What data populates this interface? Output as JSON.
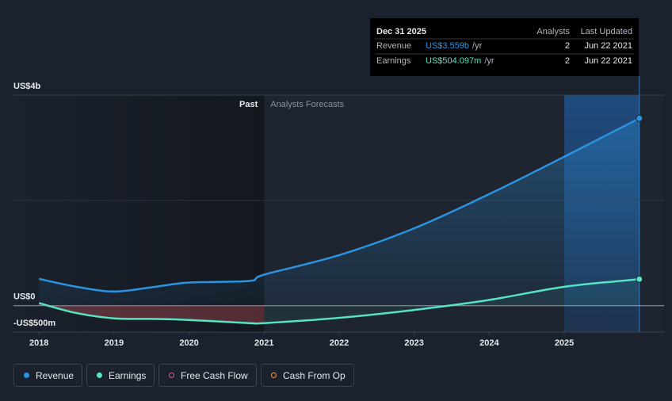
{
  "chart_data": {
    "type": "line",
    "x": [
      2018,
      2018.5,
      2019,
      2019.5,
      2020,
      2020.8,
      2021,
      2022,
      2023,
      2024,
      2025,
      2026
    ],
    "series": [
      {
        "name": "Revenue",
        "color": "#2b93df",
        "values": [
          510,
          360,
          270,
          350,
          440,
          470,
          590,
          960,
          1470,
          2120,
          2830,
          3559
        ]
      },
      {
        "name": "Earnings",
        "color": "#57e2c4",
        "values": [
          50,
          -140,
          -240,
          -250,
          -270,
          -330,
          -330,
          -230,
          -80,
          110,
          360,
          504
        ]
      }
    ],
    "inactive_series": [
      {
        "name": "Free Cash Flow",
        "color": "#d3559a"
      },
      {
        "name": "Cash From Op",
        "color": "#e5a05c"
      }
    ],
    "xlim": [
      2017.66,
      2026.33
    ],
    "xticks": [
      2018,
      2019,
      2020,
      2021,
      2022,
      2023,
      2024,
      2025
    ],
    "ylim": [
      -500,
      4000
    ],
    "yticks": [
      {
        "value": 4000,
        "label": "US$4b"
      },
      {
        "value": 0,
        "label": "US$0"
      },
      {
        "value": -500,
        "label": "-US$500m"
      }
    ],
    "ygridlines": [
      2000
    ],
    "forecast_start": 2021,
    "past_label": "Past",
    "forecast_label": "Analysts Forecasts",
    "highlight_range": [
      2025,
      2026
    ],
    "tooltip": {
      "date": "Dec 31 2025",
      "columns": [
        "Analysts",
        "Last Updated"
      ],
      "rows": [
        {
          "name": "Revenue",
          "value": "US$3.559b",
          "unit": "/yr",
          "analysts": "2",
          "updated": "Jun 22 2021"
        },
        {
          "name": "Earnings",
          "value": "US$504.097m",
          "unit": "/yr",
          "analysts": "2",
          "updated": "Jun 22 2021"
        }
      ]
    }
  }
}
